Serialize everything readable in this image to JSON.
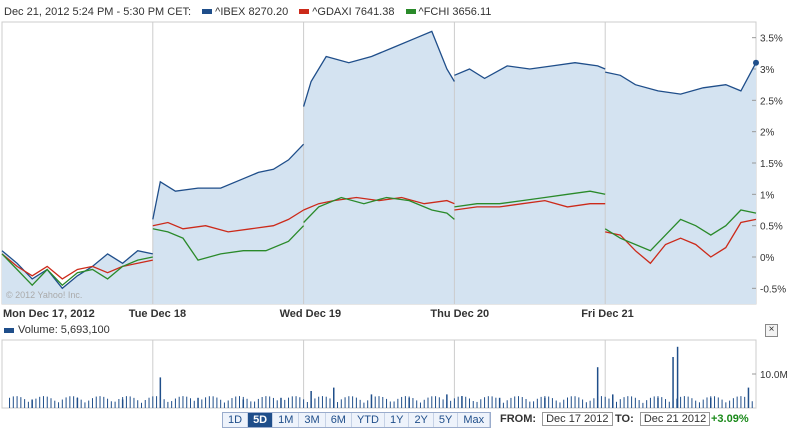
{
  "header": {
    "date_range": "Dec 21, 2012 5:24 PM - 5:30 PM CET:",
    "series": [
      {
        "label": "^IBEX 8270.20",
        "color": "#1f4e8a"
      },
      {
        "label": "^GDAXI 7641.38",
        "color": "#cc2a1a"
      },
      {
        "label": "^FCHI 3656.11",
        "color": "#2a8a2a"
      }
    ]
  },
  "watermark": "© 2012 Yahoo! Inc.",
  "volume_label": "Volume: 5,693,100",
  "close_label": "×",
  "ranges": [
    "1D",
    "5D",
    "1M",
    "3M",
    "6M",
    "YTD",
    "1Y",
    "2Y",
    "5Y",
    "Max"
  ],
  "active_range": "5D",
  "from_label": "FROM:",
  "from_value": "Dec 17 2012",
  "to_label": "TO:",
  "to_value": "Dec 21 2012",
  "change": "+3.09%",
  "chart_data": {
    "type": "line",
    "x_labels": [
      "Mon Dec 17, 2012",
      "Tue Dec 18",
      "Wed Dec 19",
      "Thu Dec 20",
      "Fri Dec 21"
    ],
    "y_ticks": [
      "3.5%",
      "3%",
      "2.5%",
      "2%",
      "1.5%",
      "1%",
      "0.5%",
      "0%",
      "-0.5%"
    ],
    "ylim": [
      -0.75,
      3.75
    ],
    "volume_tick": "10.0M",
    "series": [
      {
        "name": "^IBEX",
        "color": "#1f4e8a",
        "fill": true,
        "segments": [
          [
            [
              0,
              0.1
            ],
            [
              0.1,
              -0.1
            ],
            [
              0.2,
              -0.35
            ],
            [
              0.3,
              -0.2
            ],
            [
              0.4,
              -0.5
            ],
            [
              0.5,
              -0.3
            ],
            [
              0.6,
              -0.15
            ],
            [
              0.7,
              0.05
            ],
            [
              0.8,
              -0.1
            ],
            [
              0.9,
              0.1
            ],
            [
              1,
              0.05
            ]
          ],
          [
            [
              1,
              0.6
            ],
            [
              1.05,
              1.2
            ],
            [
              1.15,
              1.05
            ],
            [
              1.3,
              1.1
            ],
            [
              1.45,
              1.1
            ],
            [
              1.6,
              1.25
            ],
            [
              1.7,
              1.35
            ],
            [
              1.8,
              1.4
            ],
            [
              1.9,
              1.55
            ],
            [
              2,
              1.8
            ]
          ],
          [
            [
              2,
              2.4
            ],
            [
              2.05,
              2.8
            ],
            [
              2.15,
              3.2
            ],
            [
              2.3,
              3.1
            ],
            [
              2.45,
              3.2
            ],
            [
              2.6,
              3.35
            ],
            [
              2.75,
              3.5
            ],
            [
              2.85,
              3.6
            ],
            [
              2.95,
              3.0
            ],
            [
              3,
              2.8
            ]
          ],
          [
            [
              3,
              2.9
            ],
            [
              3.1,
              3.0
            ],
            [
              3.2,
              2.85
            ],
            [
              3.35,
              3.05
            ],
            [
              3.5,
              3.0
            ],
            [
              3.65,
              3.05
            ],
            [
              3.8,
              3.1
            ],
            [
              3.95,
              3.05
            ],
            [
              4,
              3.0
            ]
          ],
          [
            [
              4,
              2.95
            ],
            [
              4.1,
              2.9
            ],
            [
              4.2,
              2.75
            ],
            [
              4.35,
              2.65
            ],
            [
              4.5,
              2.6
            ],
            [
              4.65,
              2.7
            ],
            [
              4.8,
              2.75
            ],
            [
              4.9,
              2.65
            ],
            [
              5,
              3.1
            ]
          ]
        ]
      },
      {
        "name": "^GDAXI",
        "color": "#cc2a1a",
        "fill": false,
        "segments": [
          [
            [
              0,
              0.05
            ],
            [
              0.1,
              -0.15
            ],
            [
              0.2,
              -0.3
            ],
            [
              0.3,
              -0.15
            ],
            [
              0.4,
              -0.35
            ],
            [
              0.5,
              -0.2
            ],
            [
              0.6,
              -0.15
            ],
            [
              0.7,
              -0.25
            ],
            [
              0.8,
              -0.15
            ],
            [
              0.9,
              -0.1
            ],
            [
              1,
              -0.05
            ]
          ],
          [
            [
              1,
              0.5
            ],
            [
              1.1,
              0.55
            ],
            [
              1.2,
              0.45
            ],
            [
              1.35,
              0.5
            ],
            [
              1.5,
              0.4
            ],
            [
              1.65,
              0.45
            ],
            [
              1.8,
              0.5
            ],
            [
              1.9,
              0.6
            ],
            [
              2,
              0.75
            ]
          ],
          [
            [
              2,
              0.75
            ],
            [
              2.1,
              0.85
            ],
            [
              2.2,
              0.9
            ],
            [
              2.35,
              0.95
            ],
            [
              2.5,
              0.9
            ],
            [
              2.65,
              0.95
            ],
            [
              2.8,
              0.85
            ],
            [
              2.95,
              0.9
            ],
            [
              3,
              0.85
            ]
          ],
          [
            [
              3,
              0.75
            ],
            [
              3.15,
              0.8
            ],
            [
              3.3,
              0.8
            ],
            [
              3.45,
              0.85
            ],
            [
              3.6,
              0.9
            ],
            [
              3.75,
              0.8
            ],
            [
              3.9,
              0.85
            ],
            [
              4,
              0.85
            ]
          ],
          [
            [
              4,
              0.4
            ],
            [
              4.1,
              0.35
            ],
            [
              4.2,
              0.1
            ],
            [
              4.3,
              -0.1
            ],
            [
              4.4,
              0.2
            ],
            [
              4.5,
              0.3
            ],
            [
              4.6,
              0.2
            ],
            [
              4.7,
              0.0
            ],
            [
              4.8,
              0.15
            ],
            [
              4.9,
              0.55
            ],
            [
              5,
              0.6
            ]
          ]
        ]
      },
      {
        "name": "^FCHI",
        "color": "#2a8a2a",
        "fill": false,
        "segments": [
          [
            [
              0,
              0.05
            ],
            [
              0.1,
              -0.2
            ],
            [
              0.2,
              -0.45
            ],
            [
              0.3,
              -0.2
            ],
            [
              0.4,
              -0.45
            ],
            [
              0.5,
              -0.25
            ],
            [
              0.6,
              -0.2
            ],
            [
              0.7,
              -0.35
            ],
            [
              0.8,
              -0.15
            ],
            [
              0.9,
              -0.05
            ],
            [
              1,
              0.0
            ]
          ],
          [
            [
              1,
              0.45
            ],
            [
              1.1,
              0.4
            ],
            [
              1.2,
              0.3
            ],
            [
              1.3,
              -0.05
            ],
            [
              1.45,
              0.05
            ],
            [
              1.6,
              0.1
            ],
            [
              1.75,
              0.1
            ],
            [
              1.9,
              0.25
            ],
            [
              2,
              0.5
            ]
          ],
          [
            [
              2,
              0.55
            ],
            [
              2.1,
              0.8
            ],
            [
              2.25,
              0.95
            ],
            [
              2.4,
              0.85
            ],
            [
              2.55,
              0.95
            ],
            [
              2.7,
              0.9
            ],
            [
              2.85,
              0.75
            ],
            [
              2.95,
              0.7
            ],
            [
              3,
              0.6
            ]
          ],
          [
            [
              3,
              0.8
            ],
            [
              3.15,
              0.85
            ],
            [
              3.3,
              0.85
            ],
            [
              3.45,
              0.9
            ],
            [
              3.6,
              0.95
            ],
            [
              3.75,
              1.0
            ],
            [
              3.9,
              1.05
            ],
            [
              4,
              1.0
            ]
          ],
          [
            [
              4,
              0.45
            ],
            [
              4.1,
              0.3
            ],
            [
              4.2,
              0.2
            ],
            [
              4.3,
              0.1
            ],
            [
              4.4,
              0.35
            ],
            [
              4.5,
              0.6
            ],
            [
              4.6,
              0.5
            ],
            [
              4.7,
              0.35
            ],
            [
              4.8,
              0.5
            ],
            [
              4.9,
              0.75
            ],
            [
              5,
              0.7
            ]
          ]
        ]
      }
    ],
    "volume": [
      {
        "x": 0.2,
        "v": 2.5
      },
      {
        "x": 0.5,
        "v": 3
      },
      {
        "x": 0.8,
        "v": 2.5
      },
      {
        "x": 1.05,
        "v": 9
      },
      {
        "x": 1.3,
        "v": 3
      },
      {
        "x": 1.6,
        "v": 2.5
      },
      {
        "x": 1.85,
        "v": 3
      },
      {
        "x": 2.05,
        "v": 5
      },
      {
        "x": 2.2,
        "v": 6
      },
      {
        "x": 2.45,
        "v": 4
      },
      {
        "x": 2.7,
        "v": 3
      },
      {
        "x": 2.95,
        "v": 4
      },
      {
        "x": 3.05,
        "v": 3.5
      },
      {
        "x": 3.3,
        "v": 3
      },
      {
        "x": 3.6,
        "v": 3
      },
      {
        "x": 3.95,
        "v": 12
      },
      {
        "x": 4.05,
        "v": 4
      },
      {
        "x": 4.35,
        "v": 3
      },
      {
        "x": 4.45,
        "v": 15
      },
      {
        "x": 4.48,
        "v": 18
      },
      {
        "x": 4.7,
        "v": 3
      },
      {
        "x": 4.95,
        "v": 6
      }
    ]
  }
}
